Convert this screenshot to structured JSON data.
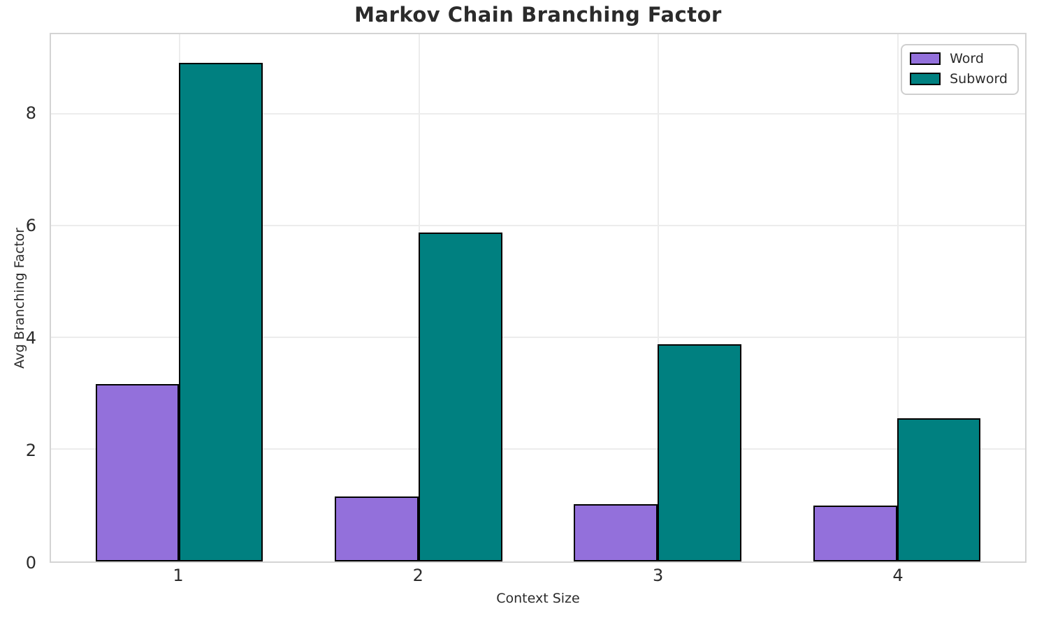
{
  "chart_data": {
    "type": "bar",
    "title": "Markov Chain Branching Factor",
    "xlabel": "Context Size",
    "ylabel": "Avg Branching Factor",
    "categories": [
      "1",
      "2",
      "3",
      "4"
    ],
    "series": [
      {
        "name": "Word",
        "color": "#9370DB",
        "values": [
          3.17,
          1.16,
          1.02,
          1.0
        ]
      },
      {
        "name": "Subword",
        "color": "#008080",
        "values": [
          8.92,
          5.88,
          3.89,
          2.56
        ]
      }
    ],
    "ylim": [
      0,
      9.43
    ],
    "yticks": [
      0,
      2,
      4,
      6,
      8
    ],
    "grid": true,
    "legend_position": "upper right",
    "bar_edgecolor": "#000000",
    "colors": {
      "grid": "#ececec",
      "spine": "#d4d4d4",
      "text": "#2b2b2b"
    }
  }
}
